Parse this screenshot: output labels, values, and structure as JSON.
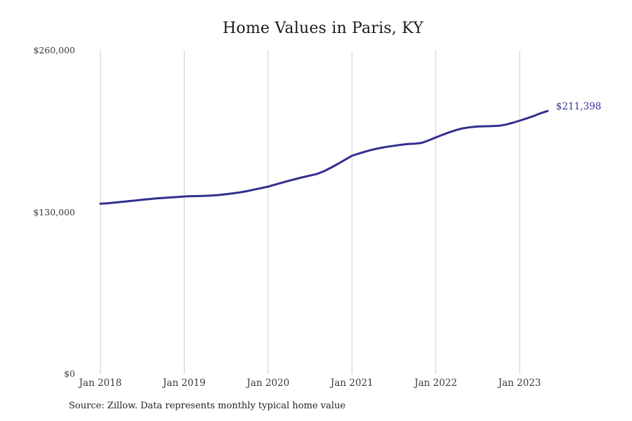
{
  "chart_data": {
    "type": "line",
    "title": "Home Values in Paris, KY",
    "source": "Source: Zillow. Data represents monthly typical home value",
    "end_label": "$211,398",
    "final_value": 211398,
    "xlabel": "",
    "ylabel": "",
    "ylim": [
      0,
      260000
    ],
    "grid": "vertical-only",
    "legend": "none",
    "line_color": "#322e8f",
    "grid_color": "#cccccc",
    "end_label_color": "#32329a",
    "tick_text_color": "#3a3a3a",
    "y_ticks": [
      {
        "label": "$0",
        "value": 0
      },
      {
        "label": "$130,000",
        "value": 130000
      },
      {
        "label": "$260,000",
        "value": 260000
      }
    ],
    "x_ticks": [
      {
        "label": "Jan 2018",
        "month_index": 0
      },
      {
        "label": "Jan 2019",
        "month_index": 12
      },
      {
        "label": "Jan 2020",
        "month_index": 24
      },
      {
        "label": "Jan 2021",
        "month_index": 36
      },
      {
        "label": "Jan 2022",
        "month_index": 48
      },
      {
        "label": "Jan 2023",
        "month_index": 60
      }
    ],
    "x": [
      "Jan 2018",
      "Feb 2018",
      "Mar 2018",
      "Apr 2018",
      "May 2018",
      "Jun 2018",
      "Jul 2018",
      "Aug 2018",
      "Sep 2018",
      "Oct 2018",
      "Nov 2018",
      "Dec 2018",
      "Jan 2019",
      "Feb 2019",
      "Mar 2019",
      "Apr 2019",
      "May 2019",
      "Jun 2019",
      "Jul 2019",
      "Aug 2019",
      "Sep 2019",
      "Oct 2019",
      "Nov 2019",
      "Dec 2019",
      "Jan 2020",
      "Feb 2020",
      "Mar 2020",
      "Apr 2020",
      "May 2020",
      "Jun 2020",
      "Jul 2020",
      "Aug 2020",
      "Sep 2020",
      "Oct 2020",
      "Nov 2020",
      "Dec 2020",
      "Jan 2021",
      "Feb 2021",
      "Mar 2021",
      "Apr 2021",
      "May 2021",
      "Jun 2021",
      "Jul 2021",
      "Aug 2021",
      "Sep 2021",
      "Oct 2021",
      "Nov 2021",
      "Dec 2021",
      "Jan 2022",
      "Feb 2022",
      "Mar 2022",
      "Apr 2022",
      "May 2022",
      "Jun 2022",
      "Jul 2022",
      "Aug 2022",
      "Sep 2022",
      "Oct 2022",
      "Nov 2022",
      "Dec 2022",
      "Jan 2023",
      "Feb 2023",
      "Mar 2023",
      "Apr 2023",
      "May 2023"
    ],
    "values": [
      136900,
      137200,
      137700,
      138300,
      138900,
      139500,
      140100,
      140600,
      141100,
      141500,
      141900,
      142300,
      142700,
      142900,
      143000,
      143200,
      143500,
      143900,
      144500,
      145200,
      146000,
      147000,
      148200,
      149400,
      150600,
      152200,
      153800,
      155300,
      156800,
      158200,
      159500,
      160800,
      163000,
      165800,
      168900,
      172200,
      175400,
      177200,
      178900,
      180400,
      181600,
      182600,
      183400,
      184200,
      184800,
      185100,
      185800,
      187800,
      190100,
      192300,
      194400,
      196200,
      197600,
      198400,
      198900,
      199100,
      199200,
      199500,
      200400,
      201900,
      203600,
      205400,
      207400,
      209600,
      211398
    ]
  }
}
